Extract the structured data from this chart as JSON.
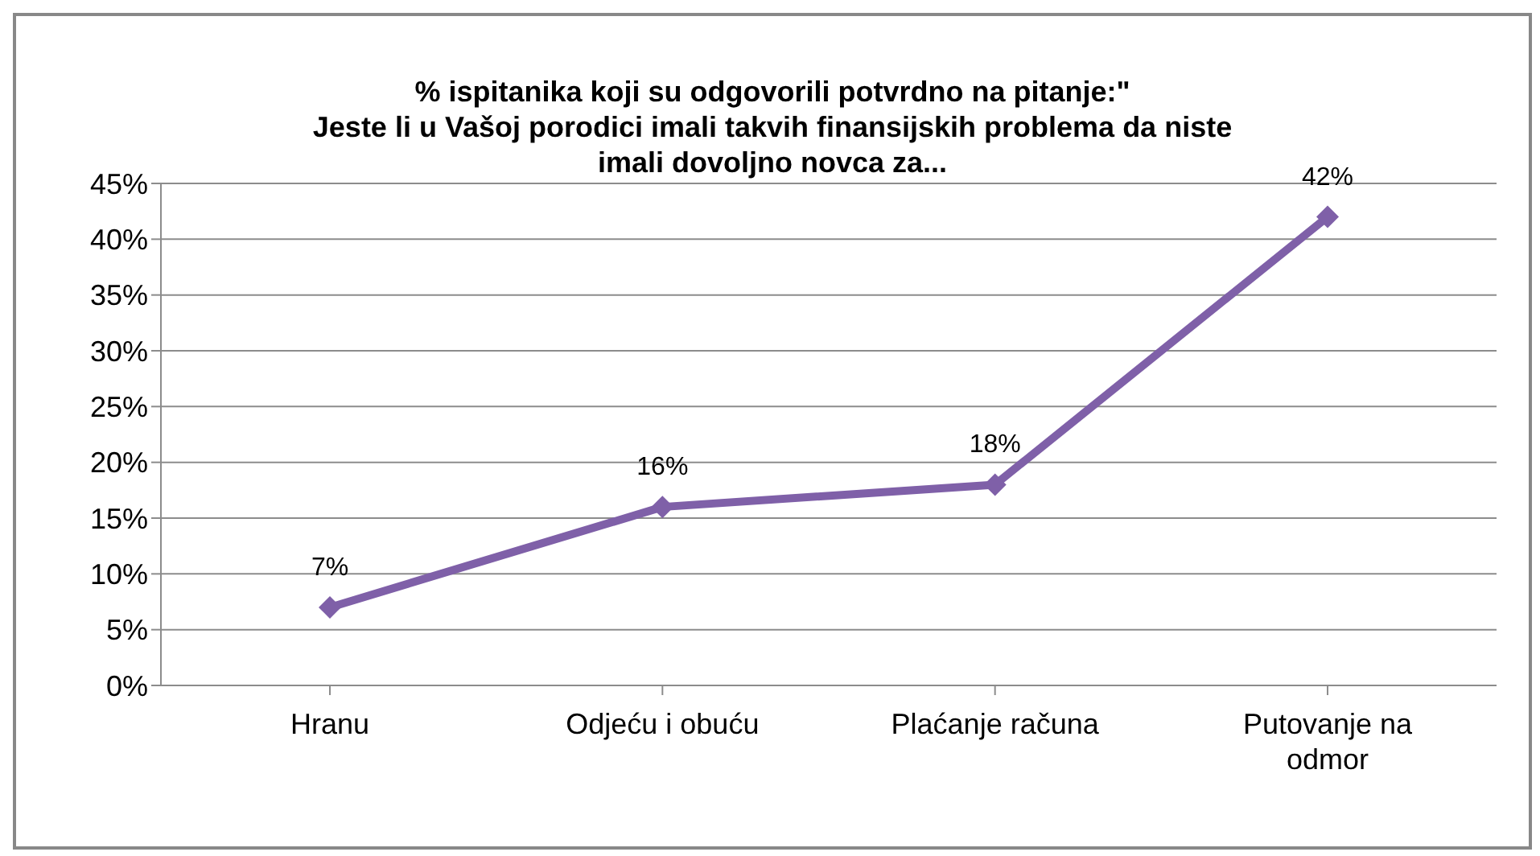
{
  "chart_data": {
    "type": "line",
    "title": "% ispitanika koji su odgovorili potvrdno na pitanje:\"\nJeste li u Vašoj porodici imali takvih finansijskih problema da niste\nimali dovoljno novca za...",
    "categories": [
      "Hranu",
      "Odjeću i obuću",
      "Plaćanje računa",
      "Putovanje na odmor"
    ],
    "series": [
      {
        "color": "#7f60a8",
        "values": [
          7,
          16,
          18,
          42
        ]
      }
    ],
    "ylim": [
      0,
      45
    ],
    "yticks": [
      {
        "value": 0,
        "label": "0%"
      },
      {
        "value": 5,
        "label": "5%"
      },
      {
        "value": 10,
        "label": "10%"
      },
      {
        "value": 15,
        "label": "15%"
      },
      {
        "value": 20,
        "label": "20%"
      },
      {
        "value": 25,
        "label": "25%"
      },
      {
        "value": 30,
        "label": "30%"
      },
      {
        "value": 35,
        "label": "35%"
      },
      {
        "value": 40,
        "label": "40%"
      },
      {
        "value": 45,
        "label": "45%"
      }
    ],
    "value_labels": [
      "7%",
      "16%",
      "18%",
      "42%"
    ],
    "grid": "y",
    "marker": "diamond",
    "line_style": "solid"
  }
}
